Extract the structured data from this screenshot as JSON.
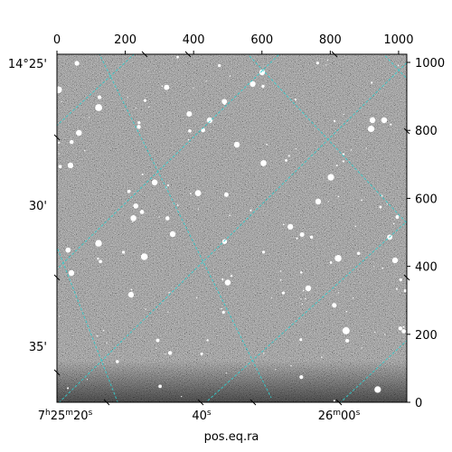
{
  "chart_data": {
    "type": "image",
    "title": "",
    "xlabel": "pos.eq.ra",
    "ylabel": "",
    "pixel_axes": {
      "x_range": [
        0,
        1024
      ],
      "y_range": [
        0,
        1024
      ],
      "x_ticks": [
        0,
        200,
        400,
        600,
        800,
        1000
      ],
      "y_ticks": [
        0,
        200,
        400,
        600,
        800,
        1000
      ],
      "x_tick_labels": [
        "0",
        "200",
        "400",
        "600",
        "800",
        "1000"
      ],
      "y_tick_labels": [
        "0",
        "200",
        "400",
        "600",
        "800",
        "1000"
      ]
    },
    "world_axes": {
      "dec_tick_labels": [
        "14°25'",
        "30'",
        "35'"
      ],
      "ra_tick_labels": [
        {
          "h": "7",
          "hs": "h",
          "m": "25",
          "ms": "m",
          "s": "20",
          "ss": "s"
        },
        {
          "h": "",
          "hs": "",
          "m": "",
          "ms": "",
          "s": "40",
          "ss": "s"
        },
        {
          "h": "",
          "hs": "",
          "m": "26",
          "ms": "m",
          "s": "00",
          "ss": "s"
        }
      ]
    },
    "grid": true,
    "grid_color": "#33cccc",
    "image_colormap": "gray",
    "background_level": "#7a7a7a"
  }
}
